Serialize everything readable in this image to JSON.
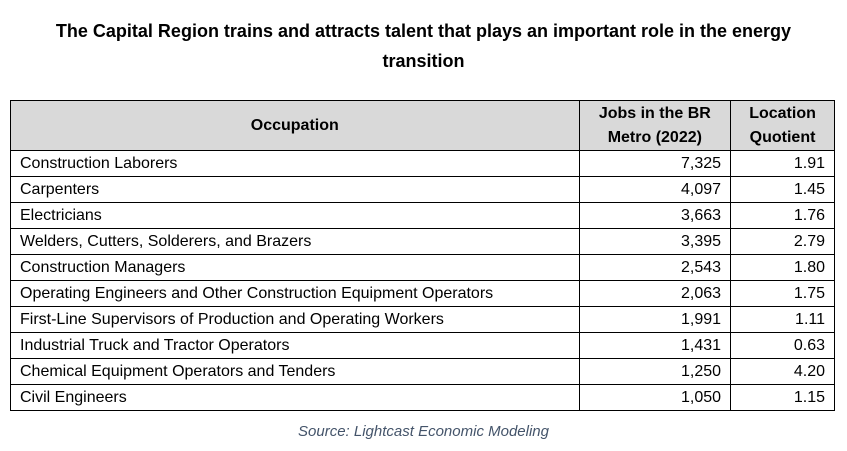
{
  "title": "The Capital Region trains and attracts talent that plays an important role in the energy transition",
  "table": {
    "header": [
      "Occupation",
      "Jobs in the BR Metro (2022)",
      "Location Quotient"
    ],
    "rows": [
      [
        "Construction Laborers",
        "7,325",
        "1.91"
      ],
      [
        "Carpenters",
        "4,097",
        "1.45"
      ],
      [
        "Electricians",
        "3,663",
        "1.76"
      ],
      [
        "Welders, Cutters, Solderers, and Brazers",
        "3,395",
        "2.79"
      ],
      [
        "Construction Managers",
        "2,543",
        "1.80"
      ],
      [
        "Operating Engineers and Other Construction Equipment Operators",
        "2,063",
        "1.75"
      ],
      [
        "First-Line Supervisors of Production and Operating Workers",
        "1,991",
        "1.11"
      ],
      [
        "Industrial Truck and Tractor Operators",
        "1,431",
        "0.63"
      ],
      [
        "Chemical Equipment Operators and Tenders",
        "1,250",
        "4.20"
      ],
      [
        "Civil Engineers",
        "1,050",
        "1.15"
      ]
    ]
  },
  "source": "Source: Lightcast Economic Modeling"
}
